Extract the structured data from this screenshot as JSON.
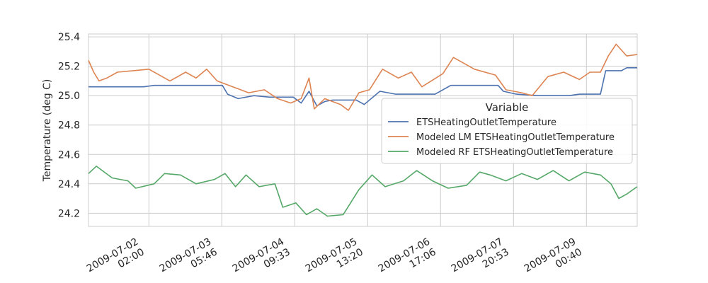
{
  "chart_data": {
    "type": "line",
    "ylabel": "Temperature (deg C)",
    "xlabel": "",
    "ylim": [
      24.11,
      25.42
    ],
    "yticks": [
      "24.2",
      "24.4",
      "24.6",
      "24.8",
      "25.0",
      "25.2",
      "25.4"
    ],
    "x_range": [
      "2009-07-01 03:00",
      "2009-07-09 20:00"
    ],
    "xticks": [
      {
        "date": "2009-07-02",
        "time": "02:00"
      },
      {
        "date": "2009-07-03",
        "time": "05:46"
      },
      {
        "date": "2009-07-04",
        "time": "09:33"
      },
      {
        "date": "2009-07-05",
        "time": "13:20"
      },
      {
        "date": "2009-07-06",
        "time": "17:06"
      },
      {
        "date": "2009-07-07",
        "time": "20:53"
      },
      {
        "date": "2009-07-09",
        "time": "00:40"
      }
    ],
    "grid": true,
    "legend": {
      "title": "Variable",
      "placement": "center-right"
    },
    "series": [
      {
        "name": "ETSHeatingOutletTemperature",
        "color": "#4c72b0",
        "points": [
          [
            "2009-07-01 03:00",
            25.06
          ],
          [
            "2009-07-01 12:00",
            25.06
          ],
          [
            "2009-07-02 00:00",
            25.06
          ],
          [
            "2009-07-02 04:00",
            25.07
          ],
          [
            "2009-07-02 12:00",
            25.07
          ],
          [
            "2009-07-03 04:00",
            25.07
          ],
          [
            "2009-07-03 06:00",
            25.07
          ],
          [
            "2009-07-03 08:00",
            25.01
          ],
          [
            "2009-07-03 12:00",
            24.98
          ],
          [
            "2009-07-03 18:00",
            25.0
          ],
          [
            "2009-07-04 00:00",
            24.99
          ],
          [
            "2009-07-04 09:00",
            24.99
          ],
          [
            "2009-07-04 12:00",
            24.95
          ],
          [
            "2009-07-04 15:00",
            25.03
          ],
          [
            "2009-07-04 18:00",
            24.93
          ],
          [
            "2009-07-04 21:00",
            24.96
          ],
          [
            "2009-07-05 00:00",
            24.97
          ],
          [
            "2009-07-05 06:00",
            24.97
          ],
          [
            "2009-07-05 09:00",
            24.97
          ],
          [
            "2009-07-05 12:00",
            24.94
          ],
          [
            "2009-07-05 18:00",
            25.03
          ],
          [
            "2009-07-06 00:00",
            25.01
          ],
          [
            "2009-07-06 12:00",
            25.01
          ],
          [
            "2009-07-06 15:00",
            25.01
          ],
          [
            "2009-07-06 21:00",
            25.07
          ],
          [
            "2009-07-07 12:00",
            25.07
          ],
          [
            "2009-07-07 15:00",
            25.07
          ],
          [
            "2009-07-07 17:00",
            25.03
          ],
          [
            "2009-07-07 22:00",
            25.01
          ],
          [
            "2009-07-08 06:00",
            25.0
          ],
          [
            "2009-07-08 18:00",
            25.0
          ],
          [
            "2009-07-08 22:00",
            25.01
          ],
          [
            "2009-07-09 06:00",
            25.01
          ],
          [
            "2009-07-09 08:00",
            25.17
          ],
          [
            "2009-07-09 14:00",
            25.17
          ],
          [
            "2009-07-09 16:00",
            25.19
          ],
          [
            "2009-07-09 20:00",
            25.19
          ]
        ]
      },
      {
        "name": "Modeled LM ETSHeatingOutletTemperature",
        "color": "#dd8452",
        "points": [
          [
            "2009-07-01 03:00",
            25.24
          ],
          [
            "2009-07-01 05:00",
            25.16
          ],
          [
            "2009-07-01 07:00",
            25.1
          ],
          [
            "2009-07-01 10:00",
            25.12
          ],
          [
            "2009-07-01 14:00",
            25.16
          ],
          [
            "2009-07-01 20:00",
            25.17
          ],
          [
            "2009-07-02 02:00",
            25.18
          ],
          [
            "2009-07-02 06:00",
            25.14
          ],
          [
            "2009-07-02 10:00",
            25.1
          ],
          [
            "2009-07-02 16:00",
            25.16
          ],
          [
            "2009-07-02 20:00",
            25.12
          ],
          [
            "2009-07-03 00:00",
            25.18
          ],
          [
            "2009-07-03 04:00",
            25.1
          ],
          [
            "2009-07-03 10:00",
            25.06
          ],
          [
            "2009-07-03 16:00",
            25.02
          ],
          [
            "2009-07-03 22:00",
            25.04
          ],
          [
            "2009-07-04 03:00",
            24.98
          ],
          [
            "2009-07-04 08:00",
            24.95
          ],
          [
            "2009-07-04 12:00",
            24.98
          ],
          [
            "2009-07-04 15:00",
            25.12
          ],
          [
            "2009-07-04 17:00",
            24.91
          ],
          [
            "2009-07-04 21:00",
            24.98
          ],
          [
            "2009-07-05 03:00",
            24.94
          ],
          [
            "2009-07-05 06:00",
            24.9
          ],
          [
            "2009-07-05 10:00",
            25.02
          ],
          [
            "2009-07-05 14:00",
            25.04
          ],
          [
            "2009-07-05 19:00",
            25.18
          ],
          [
            "2009-07-06 01:00",
            25.12
          ],
          [
            "2009-07-06 06:00",
            25.16
          ],
          [
            "2009-07-06 10:00",
            25.06
          ],
          [
            "2009-07-06 18:00",
            25.15
          ],
          [
            "2009-07-06 22:00",
            25.26
          ],
          [
            "2009-07-07 06:00",
            25.18
          ],
          [
            "2009-07-07 14:00",
            25.14
          ],
          [
            "2009-07-07 18:00",
            25.04
          ],
          [
            "2009-07-08 00:00",
            25.02
          ],
          [
            "2009-07-08 04:00",
            25.0
          ],
          [
            "2009-07-08 10:00",
            25.13
          ],
          [
            "2009-07-08 16:00",
            25.16
          ],
          [
            "2009-07-08 22:00",
            25.11
          ],
          [
            "2009-07-09 02:00",
            25.16
          ],
          [
            "2009-07-09 06:00",
            25.16
          ],
          [
            "2009-07-09 09:00",
            25.27
          ],
          [
            "2009-07-09 12:00",
            25.35
          ],
          [
            "2009-07-09 16:00",
            25.27
          ],
          [
            "2009-07-09 20:00",
            25.28
          ]
        ]
      },
      {
        "name": "Modeled RF ETSHeatingOutletTemperature",
        "color": "#55a868",
        "points": [
          [
            "2009-07-01 03:00",
            24.47
          ],
          [
            "2009-07-01 06:00",
            24.52
          ],
          [
            "2009-07-01 12:00",
            24.44
          ],
          [
            "2009-07-01 18:00",
            24.42
          ],
          [
            "2009-07-01 21:00",
            24.37
          ],
          [
            "2009-07-02 04:00",
            24.4
          ],
          [
            "2009-07-02 08:00",
            24.47
          ],
          [
            "2009-07-02 14:00",
            24.46
          ],
          [
            "2009-07-02 20:00",
            24.4
          ],
          [
            "2009-07-03 03:00",
            24.43
          ],
          [
            "2009-07-03 07:00",
            24.47
          ],
          [
            "2009-07-03 11:00",
            24.38
          ],
          [
            "2009-07-03 15:00",
            24.46
          ],
          [
            "2009-07-03 20:00",
            24.38
          ],
          [
            "2009-07-04 02:00",
            24.4
          ],
          [
            "2009-07-04 05:00",
            24.24
          ],
          [
            "2009-07-04 10:00",
            24.27
          ],
          [
            "2009-07-04 14:00",
            24.19
          ],
          [
            "2009-07-04 18:00",
            24.23
          ],
          [
            "2009-07-04 22:00",
            24.18
          ],
          [
            "2009-07-05 04:00",
            24.19
          ],
          [
            "2009-07-05 10:00",
            24.36
          ],
          [
            "2009-07-05 15:00",
            24.46
          ],
          [
            "2009-07-05 20:00",
            24.38
          ],
          [
            "2009-07-06 03:00",
            24.42
          ],
          [
            "2009-07-06 08:00",
            24.49
          ],
          [
            "2009-07-06 14:00",
            24.42
          ],
          [
            "2009-07-06 20:00",
            24.37
          ],
          [
            "2009-07-07 03:00",
            24.39
          ],
          [
            "2009-07-07 08:00",
            24.48
          ],
          [
            "2009-07-07 12:00",
            24.46
          ],
          [
            "2009-07-07 18:00",
            24.42
          ],
          [
            "2009-07-08 00:00",
            24.47
          ],
          [
            "2009-07-08 06:00",
            24.43
          ],
          [
            "2009-07-08 12:00",
            24.49
          ],
          [
            "2009-07-08 18:00",
            24.42
          ],
          [
            "2009-07-09 00:00",
            24.48
          ],
          [
            "2009-07-09 06:00",
            24.46
          ],
          [
            "2009-07-09 10:00",
            24.4
          ],
          [
            "2009-07-09 13:00",
            24.3
          ],
          [
            "2009-07-09 16:00",
            24.33
          ],
          [
            "2009-07-09 20:00",
            24.38
          ]
        ]
      }
    ]
  }
}
